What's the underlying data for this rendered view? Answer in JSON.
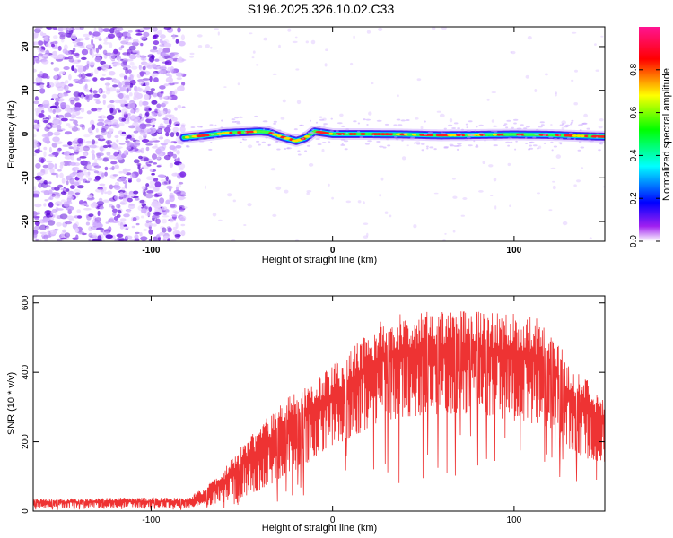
{
  "title": "S196.2025.326.10.02.C33",
  "chart_data": [
    {
      "type": "heatmap",
      "title": "S196.2025.326.10.02.C33",
      "xlabel": "Height of straight line (km)",
      "ylabel": "Frequency (Hz)",
      "xlim": [
        -165,
        150
      ],
      "ylim": [
        -24.5,
        24.5
      ],
      "xticks": [
        -100,
        0,
        100
      ],
      "yticks": [
        -20,
        -10,
        0,
        10,
        20
      ],
      "noise_region_x": [
        -165,
        -82
      ],
      "ridge": {
        "x": [
          -82,
          -70,
          -60,
          -50,
          -40,
          -35,
          -30,
          -25,
          -20,
          -15,
          -10,
          -5,
          0,
          10,
          20,
          40,
          60,
          80,
          100,
          120,
          140,
          150
        ],
        "y": [
          -0.8,
          -0.3,
          0.2,
          0.4,
          0.6,
          0.4,
          -0.4,
          -1.0,
          -1.6,
          -0.9,
          0.6,
          0.3,
          0.0,
          0.0,
          0.0,
          -0.1,
          -0.3,
          -0.2,
          -0.1,
          -0.2,
          -0.5,
          -0.6
        ]
      },
      "colorbar": {
        "label": "Normalized spectral amplitude",
        "range": [
          0,
          1
        ],
        "ticks": [
          "0.0",
          "0.2",
          "0.4",
          "0.6",
          "0.8"
        ],
        "colors": [
          "#ffffff",
          "#a020f0",
          "#0000ff",
          "#00ffff",
          "#00ff00",
          "#ffff00",
          "#ff0000",
          "#ff1493"
        ]
      }
    },
    {
      "type": "line",
      "xlabel": "Height of straight line (km)",
      "ylabel": "SNR (10 * v/v)",
      "xlim": [
        -165,
        150
      ],
      "ylim": [
        0,
        620
      ],
      "xticks": [
        -100,
        0,
        100
      ],
      "yticks": [
        0,
        200,
        400,
        600
      ],
      "color": "#ee3333",
      "envelope": {
        "x": [
          -165,
          -100,
          -80,
          -70,
          -60,
          -50,
          -40,
          -30,
          -20,
          -10,
          0,
          10,
          20,
          30,
          40,
          60,
          80,
          100,
          110,
          120,
          130,
          140,
          150
        ],
        "upper": [
          35,
          40,
          38,
          70,
          120,
          190,
          250,
          300,
          350,
          380,
          420,
          470,
          520,
          560,
          570,
          580,
          580,
          570,
          560,
          540,
          430,
          380,
          330
        ],
        "lower": [
          10,
          10,
          10,
          15,
          25,
          40,
          60,
          90,
          120,
          150,
          180,
          210,
          240,
          260,
          270,
          280,
          280,
          260,
          250,
          240,
          180,
          150,
          140
        ]
      }
    }
  ]
}
